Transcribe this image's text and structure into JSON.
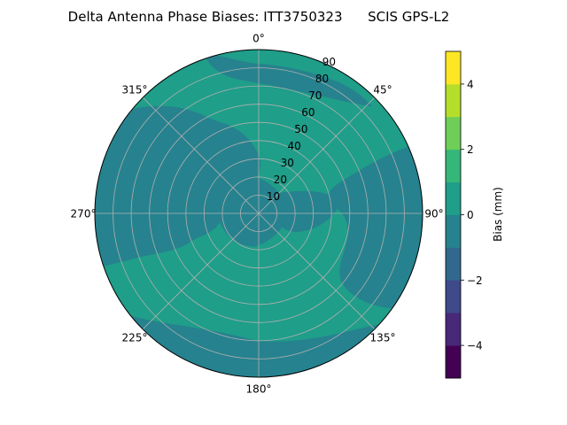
{
  "chart_data": {
    "type": "polar-contour",
    "title": "Delta Antenna Phase Biases: ITT3750323      SCIS GPS-L2",
    "angular_ticks": [
      {
        "angle": 0,
        "label": "0°"
      },
      {
        "angle": 45,
        "label": "45°"
      },
      {
        "angle": 90,
        "label": "90°"
      },
      {
        "angle": 135,
        "label": "135°"
      },
      {
        "angle": 180,
        "label": "180°"
      },
      {
        "angle": 225,
        "label": "225°"
      },
      {
        "angle": 270,
        "label": "270°"
      },
      {
        "angle": 315,
        "label": "315°"
      }
    ],
    "radial_ticks": [
      10,
      20,
      30,
      40,
      50,
      60,
      70,
      80,
      90
    ],
    "radial_range": [
      0,
      90
    ],
    "grid": true,
    "colorbar": {
      "label": "Bias (mm)",
      "range": [
        -5,
        5
      ],
      "ticks": [
        -4,
        -2,
        0,
        2,
        4
      ],
      "levels": [
        {
          "from": -5,
          "to": -4,
          "color": "#440154"
        },
        {
          "from": -4,
          "to": -3,
          "color": "#482878"
        },
        {
          "from": -3,
          "to": -2,
          "color": "#3e4a89"
        },
        {
          "from": -2,
          "to": -1,
          "color": "#31688e"
        },
        {
          "from": -1,
          "to": 0,
          "color": "#26828e"
        },
        {
          "from": 0,
          "to": 1,
          "color": "#1f9e89"
        },
        {
          "from": 1,
          "to": 2,
          "color": "#35b779"
        },
        {
          "from": 2,
          "to": 3,
          "color": "#6ece58"
        },
        {
          "from": 3,
          "to": 4,
          "color": "#b5de2b"
        },
        {
          "from": 4,
          "to": 5,
          "color": "#fde725"
        }
      ]
    },
    "field_regions": [
      {
        "level": "0 to 1",
        "color": "#1f9e89",
        "description": "background"
      },
      {
        "level": "-1 to 0",
        "color": "#26828e"
      }
    ]
  }
}
